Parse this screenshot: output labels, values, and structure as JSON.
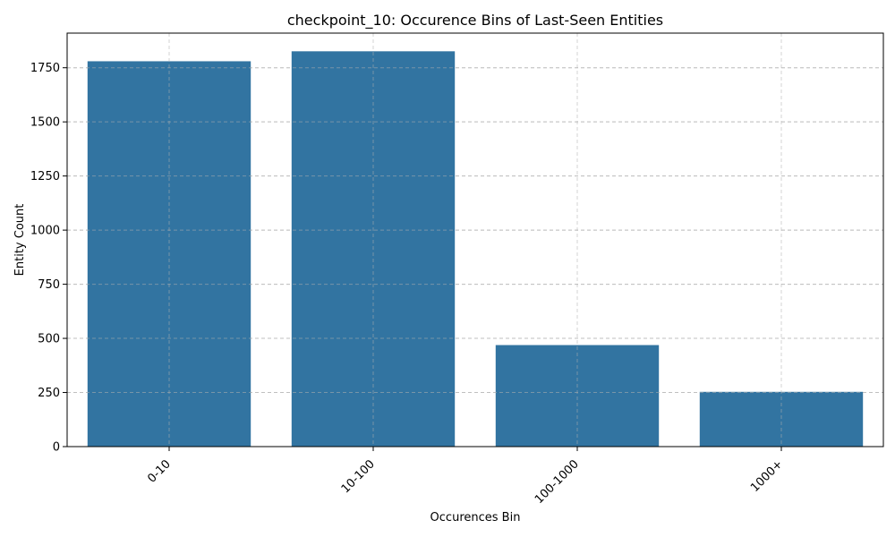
{
  "chart_data": {
    "type": "bar",
    "title": "checkpoint_10: Occurence Bins of Last-Seen Entities",
    "xlabel": "Occurences Bin",
    "ylabel": "Entity Count",
    "categories": [
      "0-10",
      "10-100",
      "100-1000",
      "1000+"
    ],
    "values": [
      1780,
      1826,
      469,
      253
    ],
    "ylim": [
      0,
      1910
    ],
    "yticks": [
      0,
      250,
      500,
      750,
      1000,
      1250,
      1500,
      1750
    ],
    "grid": true,
    "grid_style": "dashed",
    "bar_color": "#3274a1",
    "x_tick_rotation": 45
  }
}
